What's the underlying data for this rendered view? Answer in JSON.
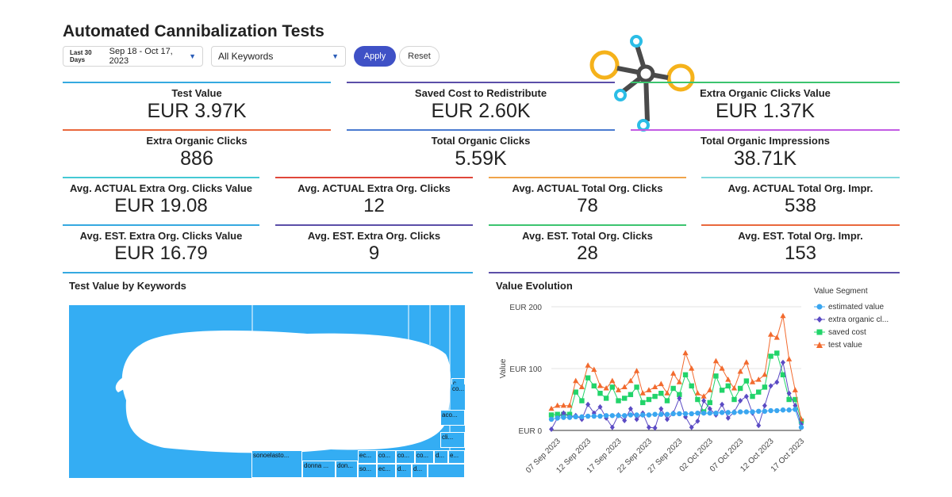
{
  "header": {
    "title": "Automated Cannibalization Tests",
    "date_prefix": "Last 30 Days",
    "date_range": "Sep 18 - Oct 17, 2023",
    "keyword_filter": "All Keywords",
    "apply_label": "Apply",
    "reset_label": "Reset"
  },
  "kpis": [
    {
      "label": "Test Value",
      "value": "EUR 3.97K",
      "color": "#35a9e0"
    },
    {
      "label": "Saved Cost to Redistribute",
      "value": "EUR 2.60K",
      "color": "#5b4ea8"
    },
    {
      "label": "Extra Organic Clicks Value",
      "value": "EUR 1.37K",
      "color": "#3cc46f"
    },
    {
      "label": "Extra Organic Clicks",
      "value": "886",
      "color": "#e9683c"
    },
    {
      "label": "Total Organic Clicks",
      "value": "5.59K",
      "color": "#4a7bd0"
    },
    {
      "label": "Total Organic Impressions",
      "value": "38.71K",
      "color": "#c25be3"
    },
    {
      "label": "Avg. ACTUAL Extra Org. Clicks Value",
      "value": "EUR 19.08",
      "color": "#45c9d4"
    },
    {
      "label": "Avg. ACTUAL Extra Org. Clicks",
      "value": "12",
      "color": "#e0473a"
    },
    {
      "label": "Avg. ACTUAL Total Org. Clicks",
      "value": "78",
      "color": "#f0a44a"
    },
    {
      "label": "Avg. ACTUAL Total Org. Impr.",
      "value": "538",
      "color": "#7fd9dd"
    },
    {
      "label": "Avg. EST. Extra Org. Clicks Value",
      "value": "EUR 16.79",
      "color": "#35a9e0"
    },
    {
      "label": "Avg. EST. Extra Org. Clicks",
      "value": "9",
      "color": "#5b4ea8"
    },
    {
      "label": "Avg. EST. Total Org. Clicks",
      "value": "28",
      "color": "#3cc46f"
    },
    {
      "label": "Avg. EST. Total Org. Impr.",
      "value": "153",
      "color": "#e9683c"
    }
  ],
  "treemap": {
    "title": "Test Value by Keywords",
    "labels": [
      "sonoelasto...",
      "donna ...",
      "don...",
      "ec...",
      "co...",
      "co...",
      "co...",
      "d...",
      "e...",
      "so...",
      "ec...",
      "d...",
      "d...",
      "aco...",
      "cli...",
      "c...",
      "co..."
    ],
    "color": "#34adf3"
  },
  "chart_data": {
    "type": "line",
    "title": "Value Evolution",
    "xlabel": "",
    "ylabel": "Value",
    "ylim": [
      0,
      200
    ],
    "yticks": [
      "EUR 0",
      "EUR 100",
      "EUR 200"
    ],
    "x_tick_labels": [
      "07 Sep 2023",
      "12 Sep 2023",
      "17 Sep 2023",
      "22 Sep 2023",
      "27 Sep 2023",
      "02 Oct 2023",
      "07 Oct 2023",
      "12 Oct 2023",
      "17 Oct 2023"
    ],
    "legend_title": "Value Segment",
    "legend_position": "right",
    "x": [
      "06 Sep",
      "07 Sep",
      "08 Sep",
      "09 Sep",
      "10 Sep",
      "11 Sep",
      "12 Sep",
      "13 Sep",
      "14 Sep",
      "15 Sep",
      "16 Sep",
      "17 Sep",
      "18 Sep",
      "19 Sep",
      "20 Sep",
      "21 Sep",
      "22 Sep",
      "23 Sep",
      "24 Sep",
      "25 Sep",
      "26 Sep",
      "27 Sep",
      "28 Sep",
      "29 Sep",
      "30 Sep",
      "01 Oct",
      "02 Oct",
      "03 Oct",
      "04 Oct",
      "05 Oct",
      "06 Oct",
      "07 Oct",
      "08 Oct",
      "09 Oct",
      "10 Oct",
      "11 Oct",
      "12 Oct",
      "13 Oct",
      "14 Oct",
      "15 Oct",
      "16 Oct",
      "17 Oct"
    ],
    "series": [
      {
        "name": "estimated value",
        "color": "#3aa6f0",
        "marker": "circle",
        "values": [
          18,
          20,
          21,
          21,
          22,
          22,
          23,
          23,
          23,
          24,
          24,
          24,
          24,
          25,
          25,
          25,
          25,
          26,
          26,
          26,
          27,
          27,
          27,
          27,
          28,
          28,
          28,
          28,
          29,
          29,
          29,
          30,
          30,
          30,
          31,
          31,
          32,
          32,
          33,
          33,
          34,
          5
        ]
      },
      {
        "name": "extra organic cl...",
        "color": "#5b4bc4",
        "marker": "diamond",
        "values": [
          2,
          20,
          28,
          22,
          24,
          18,
          42,
          28,
          38,
          20,
          5,
          25,
          16,
          35,
          18,
          28,
          5,
          4,
          35,
          18,
          28,
          52,
          22,
          5,
          15,
          48,
          35,
          25,
          42,
          20,
          30,
          48,
          55,
          28,
          8,
          40,
          72,
          78,
          110,
          60,
          40,
          10
        ]
      },
      {
        "name": "saved cost",
        "color": "#22d46a",
        "marker": "square",
        "values": [
          25,
          26,
          26,
          26,
          62,
          48,
          85,
          72,
          60,
          52,
          70,
          48,
          52,
          58,
          70,
          45,
          50,
          55,
          60,
          48,
          68,
          58,
          90,
          72,
          50,
          30,
          45,
          88,
          65,
          72,
          50,
          68,
          80,
          55,
          62,
          70,
          120,
          125,
          90,
          50,
          50,
          15
        ]
      },
      {
        "name": "test value",
        "color": "#f26a2e",
        "marker": "triangle",
        "values": [
          35,
          40,
          40,
          40,
          80,
          70,
          105,
          98,
          72,
          68,
          80,
          65,
          70,
          80,
          96,
          60,
          65,
          70,
          75,
          60,
          92,
          78,
          125,
          100,
          60,
          55,
          65,
          112,
          100,
          82,
          68,
          95,
          110,
          78,
          82,
          90,
          155,
          150,
          185,
          115,
          65,
          18
        ]
      }
    ]
  }
}
